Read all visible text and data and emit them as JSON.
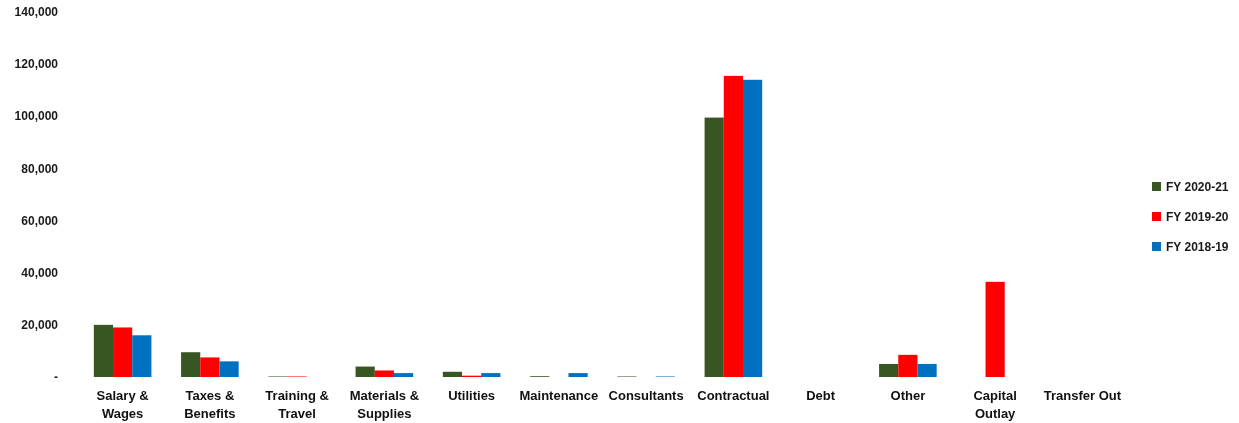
{
  "chart_data": {
    "type": "bar",
    "categories": [
      "Salary & Wages",
      "Taxes & Benefits",
      "Training & Travel",
      "Materials & Supplies",
      "Utilities",
      "Maintenance",
      "Consultants",
      "Contractual",
      "Debt",
      "Other",
      "Capital Outlay",
      "Transfer Out"
    ],
    "series": [
      {
        "name": "FY 2020-21",
        "color": "#375623",
        "values": [
          20000,
          9500,
          200,
          4000,
          2000,
          300,
          200,
          99500,
          null,
          5000,
          null,
          null
        ]
      },
      {
        "name": "FY 2019-20",
        "color": "#ff0000",
        "values": [
          19000,
          7500,
          200,
          2500,
          500,
          null,
          null,
          115500,
          null,
          8500,
          36500,
          null
        ]
      },
      {
        "name": "FY 2018-19",
        "color": "#0070c0",
        "values": [
          16000,
          6000,
          null,
          1500,
          1500,
          1500,
          200,
          114000,
          null,
          5000,
          null,
          null
        ]
      }
    ],
    "ylim": [
      0,
      140000
    ],
    "yticks": [
      {
        "value": 0,
        "label": "-"
      },
      {
        "value": 20000,
        "label": "20,000"
      },
      {
        "value": 40000,
        "label": "40,000"
      },
      {
        "value": 60000,
        "label": "60,000"
      },
      {
        "value": 80000,
        "label": "80,000"
      },
      {
        "value": 100000,
        "label": "100,000"
      },
      {
        "value": 120000,
        "label": "120,000"
      },
      {
        "value": 140000,
        "label": "140,000"
      }
    ],
    "legend": "right"
  }
}
